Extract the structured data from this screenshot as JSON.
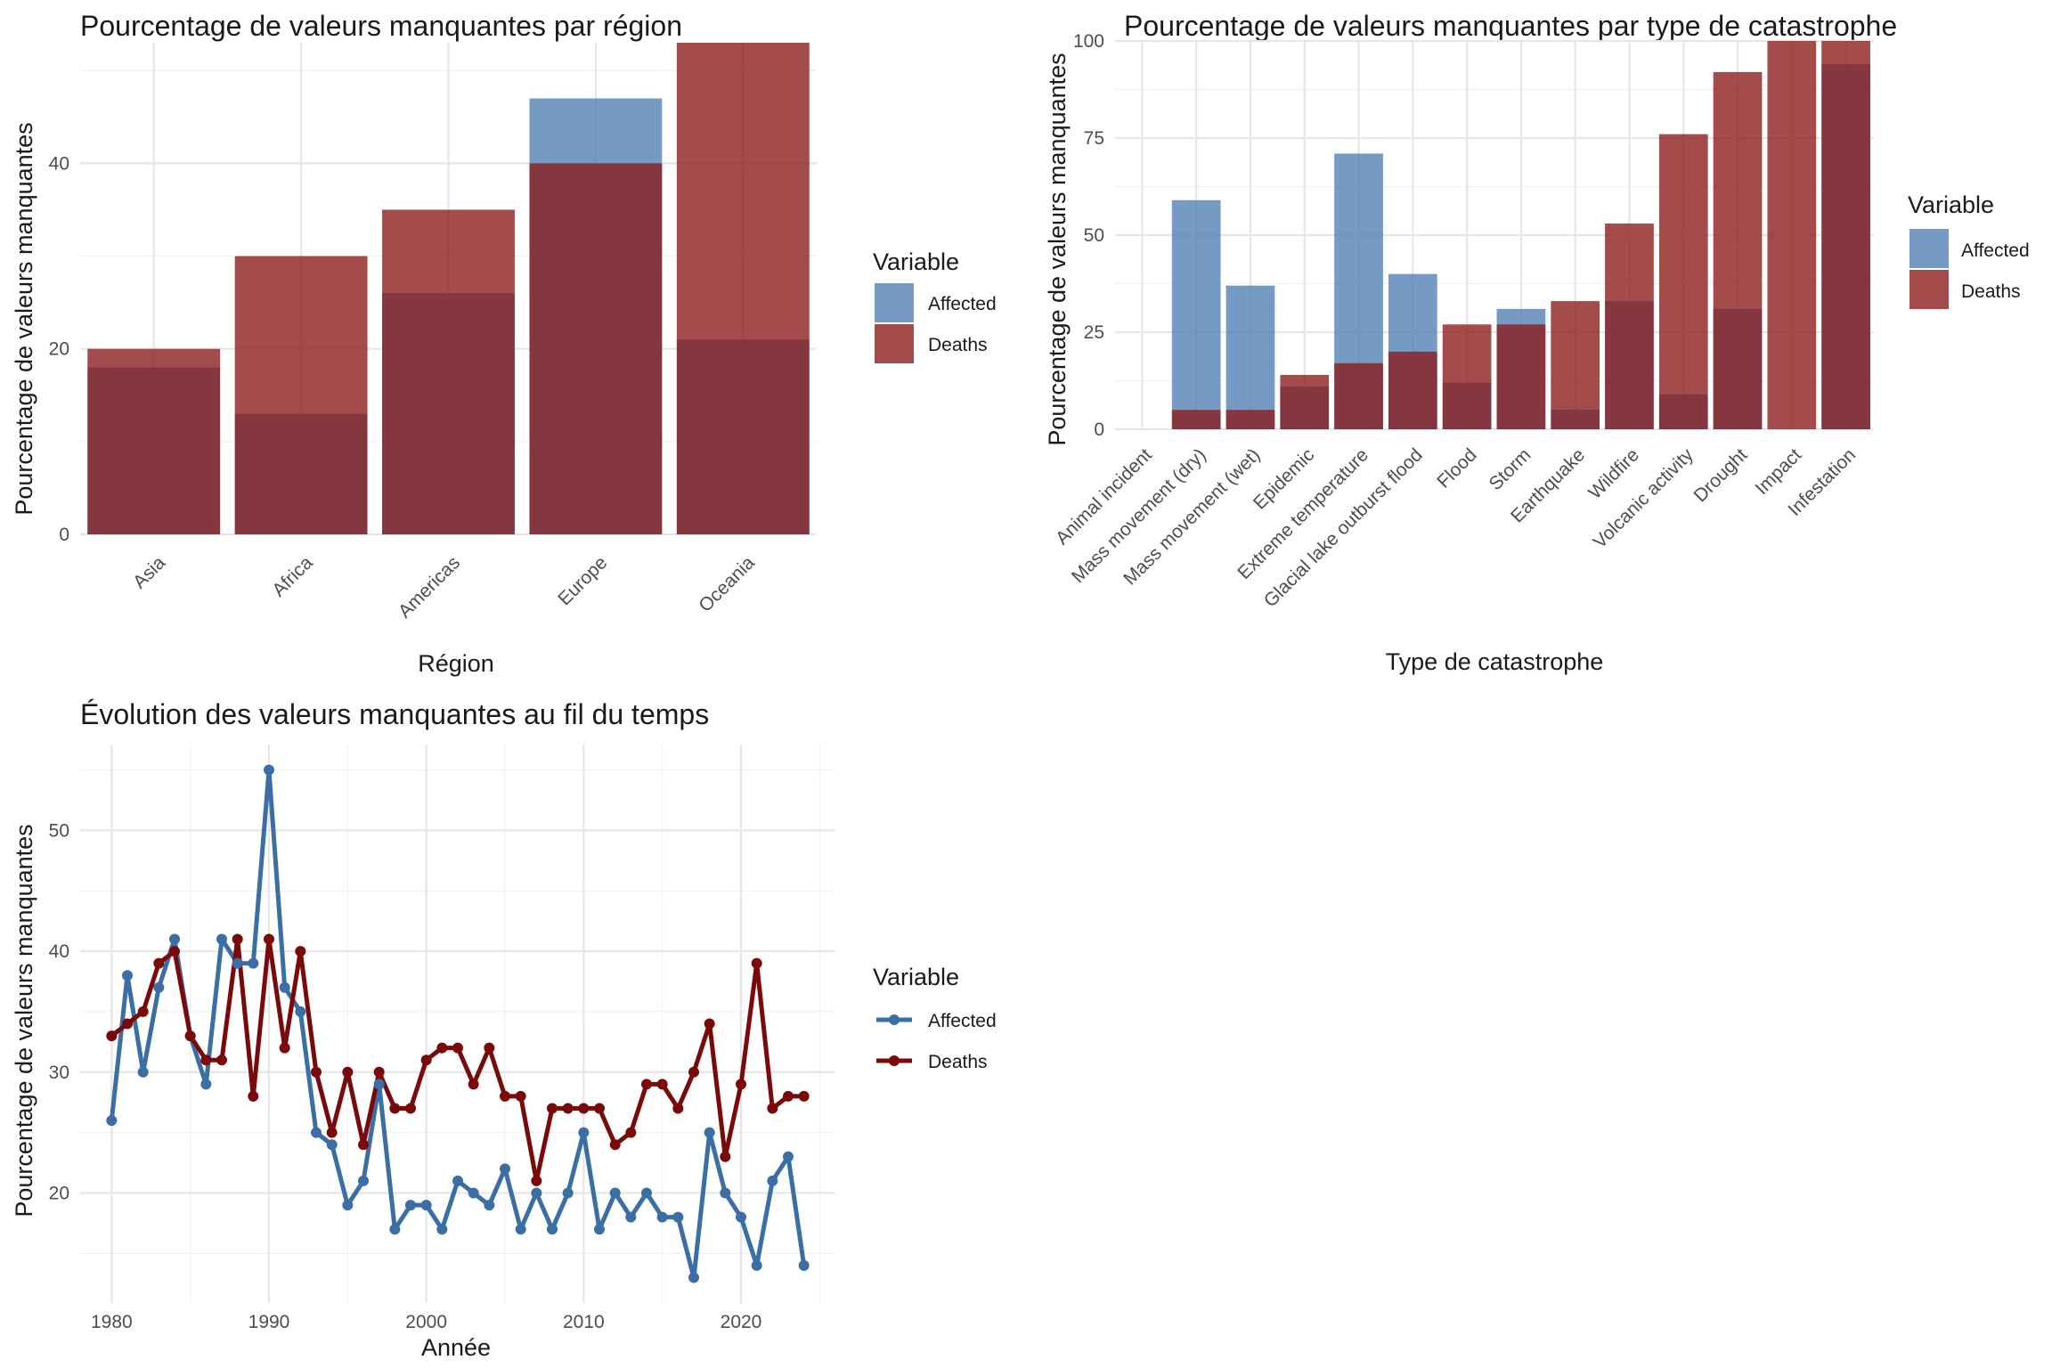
{
  "colors": {
    "affected": "#4E7DB4",
    "deaths": "#8B1A1A",
    "affected_line": "#3A6EA5",
    "deaths_line": "#7A0A0A"
  },
  "chart_data": [
    {
      "type": "bar",
      "title": "Pourcentage de valeurs manquantes par région",
      "xlabel": "Région",
      "ylabel": "Pourcentage de valeurs manquantes",
      "ylim": [
        0,
        53
      ],
      "yticks": [
        "0",
        "20",
        "40"
      ],
      "categories": [
        "Asia",
        "Africa",
        "Americas",
        "Europe",
        "Oceania"
      ],
      "series": [
        {
          "name": "Affected",
          "values": [
            18,
            13,
            26,
            47,
            21
          ]
        },
        {
          "name": "Deaths",
          "values": [
            20,
            30,
            35,
            40,
            53
          ]
        }
      ],
      "legend": {
        "title": "Variable",
        "position": "right",
        "items": [
          "Affected",
          "Deaths"
        ]
      },
      "grid": true
    },
    {
      "type": "bar",
      "title": "Pourcentage de valeurs manquantes par type de catastrophe",
      "xlabel": "Type de catastrophe",
      "ylabel": "Pourcentage de valeurs manquantes",
      "ylim": [
        0,
        100
      ],
      "yticks": [
        "0",
        "25",
        "50",
        "75",
        "100"
      ],
      "categories": [
        "Animal incident",
        "Mass movement (dry)",
        "Mass movement (wet)",
        "Epidemic",
        "Extreme temperature",
        "Glacial lake outburst flood",
        "Flood",
        "Storm",
        "Earthquake",
        "Wildfire",
        "Volcanic activity",
        "Drought",
        "Impact",
        "Infestation"
      ],
      "series": [
        {
          "name": "Affected",
          "values": [
            0,
            59,
            37,
            11,
            71,
            40,
            12,
            31,
            5,
            33,
            9,
            31,
            0,
            94
          ]
        },
        {
          "name": "Deaths",
          "values": [
            0,
            5,
            5,
            14,
            17,
            20,
            27,
            27,
            33,
            53,
            76,
            92,
            100,
            100
          ]
        }
      ],
      "legend": {
        "title": "Variable",
        "position": "right",
        "items": [
          "Affected",
          "Deaths"
        ]
      },
      "grid": true
    },
    {
      "type": "line",
      "title": "Évolution des valeurs manquantes au fil du temps",
      "xlabel": "Année",
      "ylabel": "Pourcentage de valeurs manquantes",
      "xlim": [
        1980,
        2024
      ],
      "ylim": [
        13,
        55
      ],
      "xticks": [
        "1980",
        "1990",
        "2000",
        "2010",
        "2020"
      ],
      "yticks": [
        "20",
        "30",
        "40",
        "50"
      ],
      "x": [
        1980,
        1981,
        1982,
        1983,
        1984,
        1985,
        1986,
        1987,
        1988,
        1989,
        1990,
        1991,
        1992,
        1993,
        1994,
        1995,
        1996,
        1997,
        1998,
        1999,
        2000,
        2001,
        2002,
        2003,
        2004,
        2005,
        2006,
        2007,
        2008,
        2009,
        2010,
        2011,
        2012,
        2013,
        2014,
        2015,
        2016,
        2017,
        2018,
        2019,
        2020,
        2021,
        2022,
        2023,
        2024
      ],
      "series": [
        {
          "name": "Affected",
          "values": [
            26,
            38,
            30,
            37,
            41,
            33,
            29,
            41,
            39,
            39,
            55,
            37,
            35,
            25,
            24,
            19,
            21,
            29,
            17,
            19,
            19,
            17,
            21,
            20,
            19,
            22,
            17,
            20,
            17,
            20,
            25,
            17,
            20,
            18,
            20,
            18,
            18,
            13,
            25,
            20,
            18,
            14,
            21,
            23,
            14
          ]
        },
        {
          "name": "Deaths",
          "values": [
            33,
            34,
            35,
            39,
            40,
            33,
            31,
            31,
            41,
            28,
            41,
            32,
            40,
            30,
            25,
            30,
            24,
            30,
            27,
            27,
            31,
            32,
            32,
            29,
            32,
            28,
            28,
            21,
            27,
            27,
            27,
            27,
            24,
            25,
            29,
            29,
            27,
            30,
            34,
            23,
            29,
            39,
            27,
            28,
            28
          ]
        }
      ],
      "legend": {
        "title": "Variable",
        "position": "right",
        "items": [
          "Affected",
          "Deaths"
        ]
      },
      "grid": true
    }
  ]
}
